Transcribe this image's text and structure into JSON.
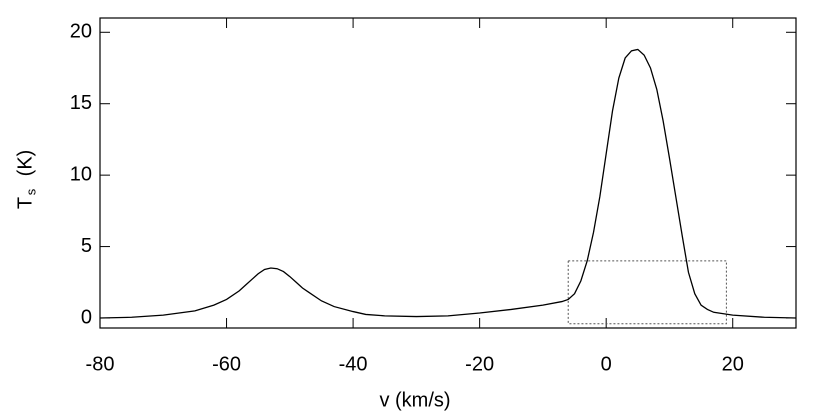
{
  "chart_data": {
    "type": "line",
    "xlabel": "v (km/s)",
    "ylabel": {
      "main": "T",
      "sub": "s",
      "unit": "(K)"
    },
    "x": [
      -80,
      -75,
      -70,
      -65,
      -62,
      -60,
      -58,
      -57,
      -56,
      -55,
      -54,
      -53,
      -52,
      -51,
      -50,
      -49,
      -48,
      -47,
      -45,
      -43,
      -40,
      -38,
      -35,
      -30,
      -25,
      -20,
      -15,
      -10,
      -7,
      -6,
      -5,
      -4,
      -3,
      -2,
      -1,
      0,
      1,
      2,
      3,
      4,
      5,
      6,
      7,
      8,
      9,
      10,
      11,
      12,
      13,
      14,
      15,
      16,
      17,
      20,
      25,
      30
    ],
    "series": [
      {
        "color": "#000000",
        "values": [
          0,
          0.05,
          0.2,
          0.5,
          0.9,
          1.3,
          1.9,
          2.3,
          2.7,
          3.1,
          3.4,
          3.5,
          3.45,
          3.25,
          2.9,
          2.5,
          2.1,
          1.8,
          1.2,
          0.8,
          0.45,
          0.25,
          0.15,
          0.1,
          0.15,
          0.35,
          0.6,
          0.9,
          1.15,
          1.3,
          1.7,
          2.6,
          4,
          6,
          8.5,
          11.5,
          14.5,
          16.8,
          18.2,
          18.7,
          18.8,
          18.4,
          17.5,
          16,
          13.8,
          11.2,
          8.5,
          5.8,
          3.2,
          1.7,
          0.9,
          0.6,
          0.4,
          0.2,
          0.05,
          0
        ]
      }
    ],
    "box": {
      "x": [
        -6,
        19
      ],
      "y": [
        -0.4,
        4
      ]
    },
    "xlim": [
      -80,
      30
    ],
    "ylim": [
      -0.7,
      21
    ],
    "xticks": [
      -80,
      -60,
      -40,
      -20,
      0,
      20
    ],
    "yticks": [
      0,
      5,
      10,
      15,
      20
    ]
  }
}
